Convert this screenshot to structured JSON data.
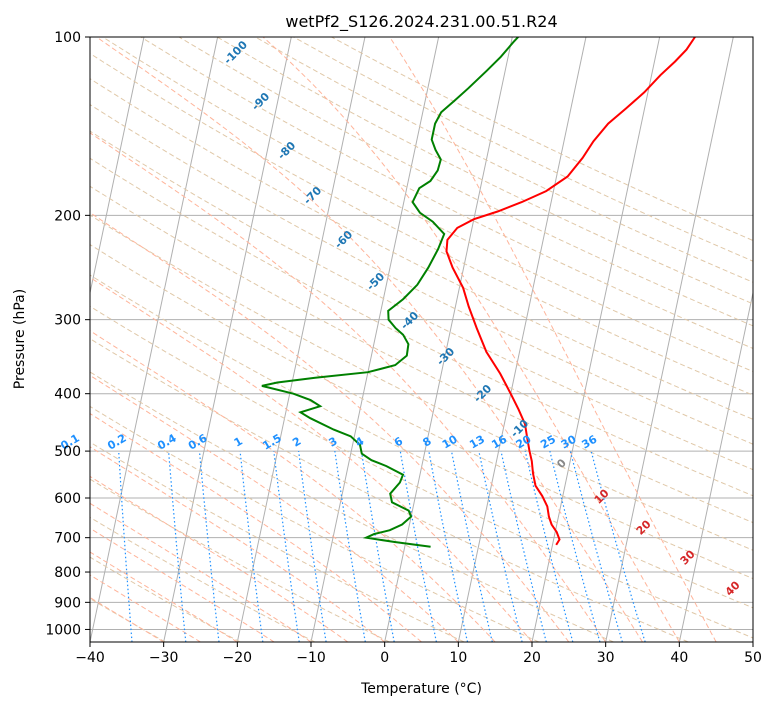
{
  "chart_data": {
    "type": "line",
    "title": "wetPf2_S126.2024.231.00.51.R24",
    "xlabel": "Temperature (°C)",
    "ylabel": "Pressure (hPa)",
    "xlim": [
      -40,
      50
    ],
    "ylim": [
      1050,
      100
    ],
    "y_scale": "log",
    "x_ticks": [
      "−40",
      "−30",
      "−20",
      "−10",
      "0",
      "10",
      "20",
      "30",
      "40",
      "50"
    ],
    "y_ticks": [
      {
        "p": 100,
        "label": "100"
      },
      {
        "p": 200,
        "label": "200"
      },
      {
        "p": 300,
        "label": "300"
      },
      {
        "p": 400,
        "label": "400"
      },
      {
        "p": 500,
        "label": "500"
      },
      {
        "p": 600,
        "label": "600"
      },
      {
        "p": 700,
        "label": "700"
      },
      {
        "p": 800,
        "label": "800"
      },
      {
        "p": 900,
        "label": "900"
      },
      {
        "p": 1000,
        "label": "1000"
      }
    ],
    "grid": true,
    "series": [
      {
        "role": "temperature",
        "color": "#ff0000",
        "points": [
          [
            20.5,
            720
          ],
          [
            20.8,
            705
          ],
          [
            20.2,
            685
          ],
          [
            19.3,
            665
          ],
          [
            18.7,
            645
          ],
          [
            18.2,
            620
          ],
          [
            17.2,
            595
          ],
          [
            16.0,
            572
          ],
          [
            15.3,
            545
          ],
          [
            14.8,
            520
          ],
          [
            14.2,
            500
          ],
          [
            13.5,
            475
          ],
          [
            12.8,
            450
          ],
          [
            11.5,
            425
          ],
          [
            10.0,
            400
          ],
          [
            8.0,
            370
          ],
          [
            5.5,
            340
          ],
          [
            3.5,
            310
          ],
          [
            1.8,
            285
          ],
          [
            0.5,
            265
          ],
          [
            -1.5,
            245
          ],
          [
            -2.8,
            230
          ],
          [
            -3.0,
            220
          ],
          [
            -2.0,
            210
          ],
          [
            0.0,
            203
          ],
          [
            3.0,
            197
          ],
          [
            6.0,
            190
          ],
          [
            9.0,
            182
          ],
          [
            11.5,
            172
          ],
          [
            13.0,
            160
          ],
          [
            14.0,
            150
          ],
          [
            15.5,
            140
          ],
          [
            17.5,
            132
          ],
          [
            19.5,
            124
          ],
          [
            21.2,
            116
          ],
          [
            22.8,
            110
          ],
          [
            24.0,
            105
          ],
          [
            24.8,
            100
          ]
        ]
      },
      {
        "role": "dewpoint",
        "color": "#008000",
        "points": [
          [
            3.5,
            725
          ],
          [
            -1.5,
            712
          ],
          [
            -5.5,
            700
          ],
          [
            -4.5,
            690
          ],
          [
            -2.5,
            680
          ],
          [
            -1.0,
            665
          ],
          [
            0.0,
            645
          ],
          [
            -0.5,
            630
          ],
          [
            -3.0,
            610
          ],
          [
            -3.5,
            590
          ],
          [
            -2.5,
            565
          ],
          [
            -2.3,
            548
          ],
          [
            -4.8,
            530
          ],
          [
            -7.0,
            518
          ],
          [
            -8.5,
            505
          ],
          [
            -9.0,
            488
          ],
          [
            -10.5,
            472
          ],
          [
            -13.0,
            460
          ],
          [
            -16.5,
            440
          ],
          [
            -18.0,
            430
          ],
          [
            -15.5,
            420
          ],
          [
            -17.0,
            410
          ],
          [
            -19.5,
            400
          ],
          [
            -24.0,
            388
          ],
          [
            -22.0,
            383
          ],
          [
            -17.0,
            376
          ],
          [
            -10.0,
            368
          ],
          [
            -6.5,
            358
          ],
          [
            -5.2,
            345
          ],
          [
            -5.3,
            330
          ],
          [
            -6.3,
            318
          ],
          [
            -7.5,
            310
          ],
          [
            -8.7,
            300
          ],
          [
            -9.0,
            290
          ],
          [
            -7.3,
            277
          ],
          [
            -5.8,
            262
          ],
          [
            -4.8,
            245
          ],
          [
            -4.0,
            228
          ],
          [
            -3.6,
            215
          ],
          [
            -5.5,
            205
          ],
          [
            -7.5,
            198
          ],
          [
            -8.8,
            190
          ],
          [
            -8.3,
            180
          ],
          [
            -7.0,
            175
          ],
          [
            -6.3,
            168
          ],
          [
            -6.2,
            161
          ],
          [
            -7.2,
            155
          ],
          [
            -8.0,
            149
          ],
          [
            -8.0,
            140
          ],
          [
            -7.5,
            134
          ],
          [
            -6.0,
            128
          ],
          [
            -4.5,
            122
          ],
          [
            -2.5,
            114
          ],
          [
            -1.0,
            108
          ],
          [
            0.3,
            102
          ],
          [
            0.8,
            100
          ]
        ]
      }
    ],
    "dry_adiabat_labels": [
      "-100",
      "-90",
      "-80",
      "-70",
      "-60",
      "-50",
      "-40",
      "-30",
      "-20",
      "-10"
    ],
    "moist_adiabat_labels": [
      "0",
      "10",
      "20",
      "30",
      "40"
    ],
    "mixing_ratio_labels": [
      "0.1",
      "0.2",
      "0.4",
      "0.6",
      "1",
      "1.5",
      "2",
      "3",
      "4",
      "6",
      "8",
      "10",
      "13",
      "16",
      "20",
      "25",
      "30",
      "36"
    ],
    "colors": {
      "isotherm": "#b0b0b0",
      "isobar": "#b0b0b0",
      "dry_adiabat": "#e0c8a8",
      "moist_adiabat": "#a8d8a8",
      "saturated_adiabat": "#ffb49a",
      "mixing_ratio": "#1e90ff",
      "dry_label": "#1f77b4",
      "moist_label": "#d62728",
      "mix_label": "#1e90ff"
    }
  }
}
